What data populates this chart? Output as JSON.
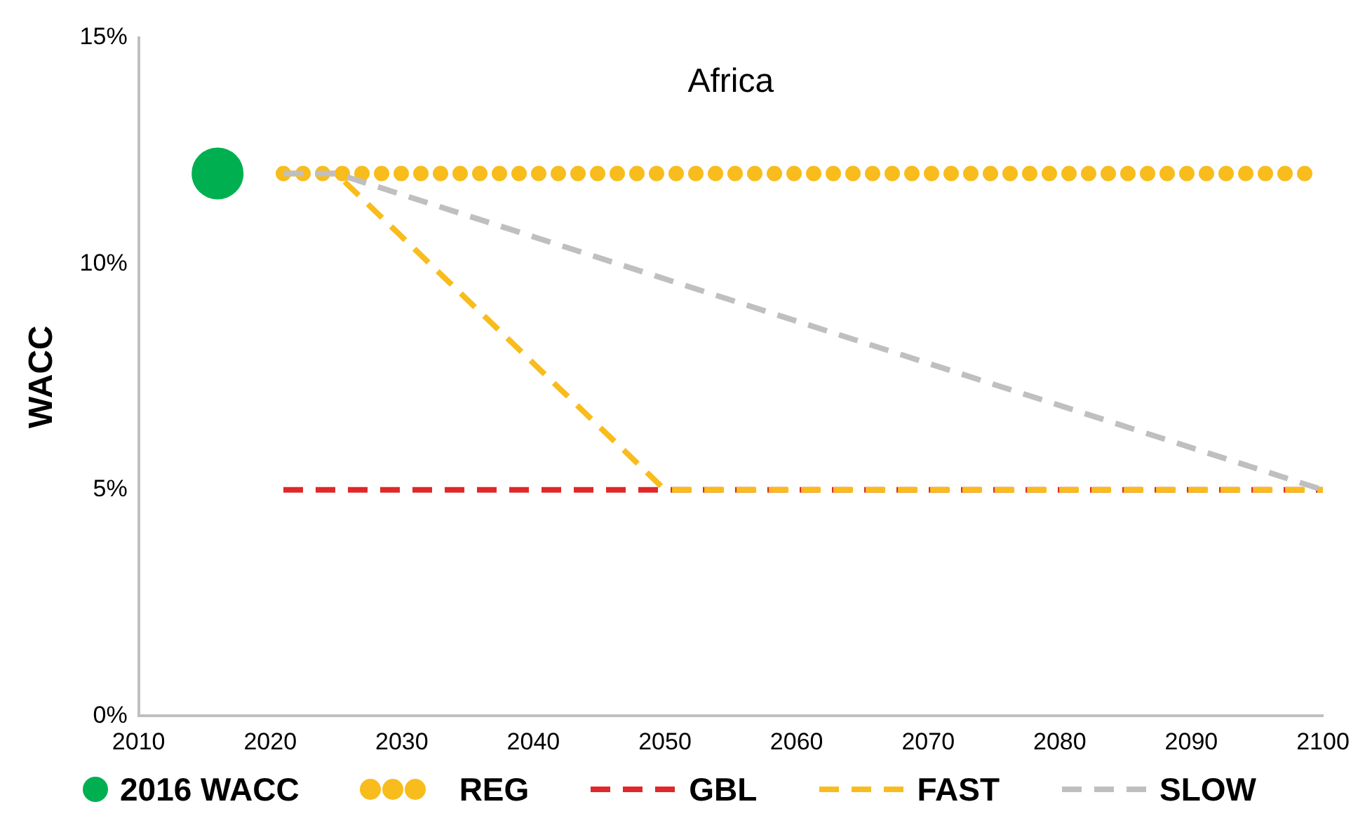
{
  "chart_data": {
    "type": "line",
    "title": "Africa",
    "ylabel": "WACC",
    "xlim": [
      2010,
      2100
    ],
    "xticks": [
      2010,
      2020,
      2030,
      2040,
      2050,
      2060,
      2070,
      2080,
      2090,
      2100
    ],
    "ylim": [
      0,
      15
    ],
    "yticks": [
      {
        "value": 0,
        "label": "0%"
      },
      {
        "value": 5,
        "label": "5%"
      },
      {
        "value": 10,
        "label": "10%"
      },
      {
        "value": 15,
        "label": "15%"
      }
    ],
    "grid": false,
    "legend": "bottom",
    "series": [
      {
        "name": "2016 WACC",
        "type": "scatter",
        "marker": "circle",
        "color": "#00b050",
        "x": [
          2016
        ],
        "values": [
          12
        ]
      },
      {
        "name": "REG",
        "line_style": "dotted",
        "color": "#f8bc1c",
        "x": [
          2021,
          2100
        ],
        "values": [
          12,
          12
        ]
      },
      {
        "name": "GBL",
        "line_style": "dashed",
        "color": "#e0282a",
        "x": [
          2021,
          2100
        ],
        "values": [
          5,
          5
        ]
      },
      {
        "name": "FAST",
        "line_style": "dashed",
        "color": "#f8bc1c",
        "x": [
          2021,
          2025,
          2050,
          2100
        ],
        "values": [
          12,
          12,
          5,
          5
        ]
      },
      {
        "name": "SLOW",
        "line_style": "dashed",
        "color": "#bfbfbf",
        "x": [
          2021,
          2025,
          2100
        ],
        "values": [
          12,
          12,
          5
        ]
      }
    ]
  }
}
